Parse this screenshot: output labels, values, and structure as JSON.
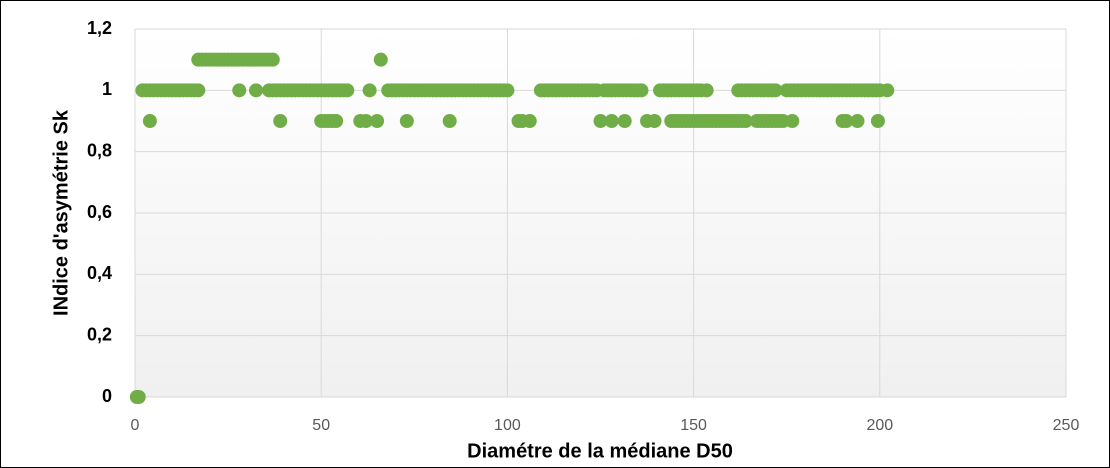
{
  "chart_data": {
    "type": "scatter",
    "xlabel": "Diamétre de la médiane D50",
    "ylabel": "INdice d'asymétrie Sk",
    "color": "#70ad47",
    "grid": true,
    "xlim": [
      0,
      250
    ],
    "xticks": [
      0,
      50,
      100,
      150,
      200,
      250
    ],
    "ylim": [
      0,
      1.2
    ],
    "yticks": [
      0,
      {
        "value": 0.2,
        "label": "0,2"
      },
      {
        "value": 0.4,
        "label": "0,4"
      },
      {
        "value": 0.6,
        "label": "0,6"
      },
      {
        "value": 0.8,
        "label": "0,8"
      },
      1,
      {
        "value": 1.2,
        "label": "1,2"
      }
    ],
    "x": [
      0.5,
      1,
      4,
      39,
      50,
      51,
      52,
      53,
      54,
      60.5,
      62,
      65,
      73,
      84.5,
      103,
      104,
      106,
      125,
      128,
      131.5,
      137.5,
      139.5,
      144,
      145,
      146,
      147,
      148,
      149,
      150,
      151,
      152,
      153,
      154,
      155,
      156,
      157,
      158,
      159,
      160,
      161,
      162,
      163,
      164,
      167,
      168,
      169,
      170,
      171,
      172,
      173,
      174,
      176.5,
      190,
      191,
      194,
      199.5,
      17,
      18,
      19,
      20,
      21,
      22,
      23,
      24,
      25,
      26,
      27,
      28,
      29,
      30,
      31,
      32,
      33,
      34,
      35,
      36,
      37,
      66,
      2,
      3,
      4,
      5,
      6,
      7,
      8,
      9,
      10,
      11,
      12,
      13,
      14,
      15,
      16,
      17,
      28,
      32.5,
      36,
      37,
      38,
      39,
      40,
      41,
      42,
      43,
      44,
      45,
      46,
      47,
      48,
      49,
      50,
      51,
      52,
      53,
      54,
      55,
      56,
      57,
      63,
      68,
      69,
      70,
      71,
      72,
      73,
      74,
      75,
      76,
      77,
      78,
      79,
      80,
      81,
      82,
      83,
      84,
      85,
      86,
      87,
      88,
      89,
      90,
      91,
      92,
      93,
      94,
      95,
      96,
      97,
      98,
      99,
      100,
      109,
      110,
      111,
      112,
      113,
      114,
      115,
      116,
      117,
      118,
      119,
      120,
      121,
      122,
      123,
      124,
      126,
      127,
      128,
      129,
      130,
      131,
      132,
      133,
      134,
      135,
      136,
      141,
      142,
      143,
      144,
      145,
      146,
      147,
      148,
      149,
      150,
      151,
      152,
      153.5,
      162,
      163,
      164,
      165,
      166,
      167,
      168,
      169,
      170,
      171,
      172,
      175,
      176,
      177,
      178,
      179,
      180,
      181,
      182,
      183,
      184,
      185,
      186,
      187,
      188,
      189,
      190,
      191,
      192,
      193,
      194,
      195,
      196,
      197,
      198,
      199,
      200,
      202
    ],
    "values": [
      0,
      0,
      0.9,
      0.9,
      0.9,
      0.9,
      0.9,
      0.9,
      0.9,
      0.9,
      0.9,
      0.9,
      0.9,
      0.9,
      0.9,
      0.9,
      0.9,
      0.9,
      0.9,
      0.9,
      0.9,
      0.9,
      0.9,
      0.9,
      0.9,
      0.9,
      0.9,
      0.9,
      0.9,
      0.9,
      0.9,
      0.9,
      0.9,
      0.9,
      0.9,
      0.9,
      0.9,
      0.9,
      0.9,
      0.9,
      0.9,
      0.9,
      0.9,
      0.9,
      0.9,
      0.9,
      0.9,
      0.9,
      0.9,
      0.9,
      0.9,
      0.9,
      0.9,
      0.9,
      0.9,
      0.9,
      1.1,
      1.1,
      1.1,
      1.1,
      1.1,
      1.1,
      1.1,
      1.1,
      1.1,
      1.1,
      1.1,
      1.1,
      1.1,
      1.1,
      1.1,
      1.1,
      1.1,
      1.1,
      1.1,
      1.1,
      1.1,
      1.1,
      1,
      1,
      1,
      1,
      1,
      1,
      1,
      1,
      1,
      1,
      1,
      1,
      1,
      1,
      1,
      1,
      1,
      1,
      1,
      1,
      1,
      1,
      1,
      1,
      1,
      1,
      1,
      1,
      1,
      1,
      1,
      1,
      1,
      1,
      1,
      1,
      1,
      1,
      1,
      1,
      1,
      1,
      1,
      1,
      1,
      1,
      1,
      1,
      1,
      1,
      1,
      1,
      1,
      1,
      1,
      1,
      1,
      1,
      1,
      1,
      1,
      1,
      1,
      1,
      1,
      1,
      1,
      1,
      1,
      1,
      1,
      1,
      1,
      1,
      1,
      1,
      1,
      1,
      1,
      1,
      1,
      1,
      1,
      1,
      1,
      1,
      1,
      1,
      1,
      1,
      1,
      1,
      1,
      1,
      1,
      1,
      1,
      1,
      1,
      1,
      1,
      1,
      1,
      1,
      1,
      1,
      1,
      1,
      1,
      1,
      1,
      1,
      1,
      1,
      1,
      1,
      1,
      1,
      1,
      1,
      1,
      1,
      1,
      1,
      1,
      1,
      1,
      1,
      1,
      1,
      1,
      1,
      1,
      1,
      1,
      1,
      1,
      1,
      1,
      1,
      1,
      1,
      1,
      1,
      1,
      1,
      1,
      1,
      1,
      1,
      1,
      1
    ]
  }
}
